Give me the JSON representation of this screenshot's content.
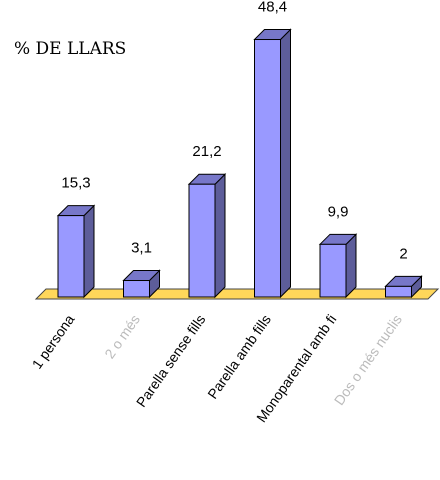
{
  "chart_data": {
    "type": "bar",
    "title": "",
    "ylabel": "% DE LLARS",
    "xlabel": "",
    "ylim": [
      0,
      50
    ],
    "categories": [
      "1 persona",
      "2 o més",
      "Parella sense fills",
      "Parella amb fills",
      "Monoparental amb fi",
      "Dos o més nuclis"
    ],
    "values": [
      15.3,
      3.1,
      21.2,
      48.4,
      9.9,
      2
    ],
    "value_labels": [
      "15,3",
      "3,1",
      "21,2",
      "48,4",
      "9,9",
      "2"
    ],
    "faded_categories": [
      false,
      true,
      false,
      false,
      false,
      true
    ],
    "grid": false,
    "legend": "none",
    "colors": {
      "bar_front": "#9999ff",
      "bar_side": "#5d5d9a",
      "bar_top": "#7777c9",
      "bar_stroke": "#000000",
      "floor": "#ffd75a",
      "floor_stroke": "#444444"
    }
  }
}
